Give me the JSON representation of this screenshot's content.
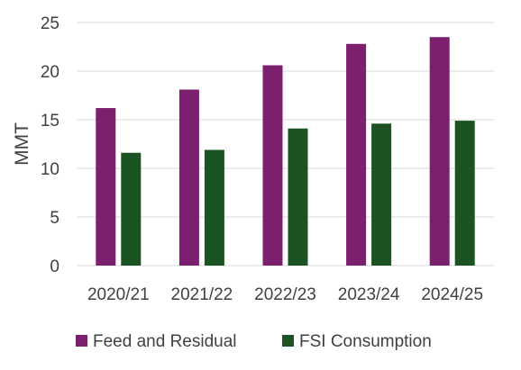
{
  "chart_data": {
    "type": "bar",
    "title": "",
    "xlabel": "",
    "ylabel": "MMT",
    "ylim": [
      0,
      25
    ],
    "yticks": [
      0,
      5,
      10,
      15,
      20,
      25
    ],
    "grid": true,
    "legend_position": "bottom",
    "categories": [
      "2020/21",
      "2021/22",
      "2022/23",
      "2023/24",
      "2024/25"
    ],
    "series": [
      {
        "name": "Feed and Residual",
        "color": "#7B1F6E",
        "values": [
          16.2,
          18.1,
          20.6,
          22.8,
          23.5
        ]
      },
      {
        "name": "FSI Consumption",
        "color": "#1B5323",
        "values": [
          11.6,
          11.9,
          14.1,
          14.6,
          14.9
        ]
      }
    ]
  }
}
